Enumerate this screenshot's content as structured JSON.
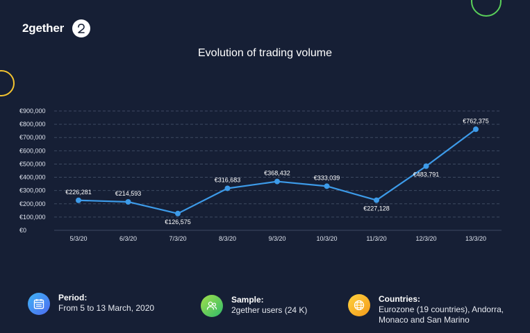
{
  "brand": {
    "name": "2gether"
  },
  "colors": {
    "background": "#161f35",
    "line": "#3d9be9",
    "grid": "#3e4a62",
    "ring_green": "#5ad05a",
    "ring_yellow": "#f4c430"
  },
  "chart_data": {
    "type": "line",
    "title": "Evolution of trading volume",
    "categories": [
      "5/3/20",
      "6/3/20",
      "7/3/20",
      "8/3/20",
      "9/3/20",
      "10/3/20",
      "11/3/20",
      "12/3/20",
      "13/3/20"
    ],
    "values": [
      226281,
      214593,
      126575,
      316683,
      368432,
      333039,
      227128,
      483791,
      762375
    ],
    "data_labels": [
      "€226,281",
      "€214,593",
      "€126,575",
      "€316,683",
      "€368,432",
      "€333,039",
      "€227,128",
      "€483,791",
      "€762,375"
    ],
    "label_positions": [
      "above",
      "above",
      "below",
      "above",
      "above",
      "above",
      "below",
      "below",
      "above"
    ],
    "ylim": [
      0,
      900000
    ],
    "y_ticks": [
      0,
      100000,
      200000,
      300000,
      400000,
      500000,
      600000,
      700000,
      800000,
      900000
    ],
    "y_tick_labels": [
      "€0",
      "€100,000",
      "€200,000",
      "€300,000",
      "€400,000",
      "€500,000",
      "€600,000",
      "€700,000",
      "€800,000",
      "€900,000"
    ],
    "grid": true,
    "legend": "none"
  },
  "footer": {
    "period": {
      "label": "Period:",
      "value": "From 5 to 13 March, 2020",
      "icon": "calendar-icon"
    },
    "sample": {
      "label": "Sample:",
      "value": "2gether users (24 K)",
      "icon": "users-icon"
    },
    "countries": {
      "label": "Countries:",
      "value_line1": "Eurozone (19 countries), Andorra,",
      "value_line2": "Monaco and San Marino",
      "icon": "globe-icon"
    }
  }
}
